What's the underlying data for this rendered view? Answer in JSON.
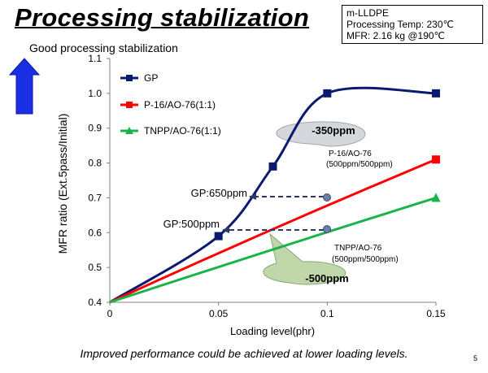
{
  "slide": {
    "title": "Processing stabilization",
    "conditions": [
      "m-LLDPE",
      "Processing Temp: 230℃",
      "MFR: 2.16 kg @190℃"
    ],
    "footer": "Improved performance could be achieved at lower loading levels.",
    "page_number": "5"
  },
  "chart_data": {
    "type": "line",
    "title": "",
    "xlabel": "Loading level(phr)",
    "ylabel": "MFR ratio (Ext.5pass/Initial)",
    "x_ticks": [
      "0",
      "0.05",
      "0.1",
      "0.15"
    ],
    "y_ticks": [
      "0.4",
      "0.5",
      "0.6",
      "0.7",
      "0.8",
      "0.9",
      "1.0",
      "1.1"
    ],
    "xlim": [
      0,
      0.15
    ],
    "ylim": [
      0.4,
      1.1
    ],
    "legend_position": "top-left",
    "series": [
      {
        "name": "GP",
        "color": "#0b1a6e",
        "marker": "square",
        "x": [
          0,
          0.05,
          0.075,
          0.1,
          0.15
        ],
        "y": [
          0.4,
          0.59,
          0.79,
          1.0,
          1.0
        ]
      },
      {
        "name": "P-16/AO-76(1:1)",
        "color": "#ff0000",
        "marker": "square",
        "x": [
          0,
          0.15
        ],
        "y": [
          0.4,
          0.81
        ]
      },
      {
        "name": "TNPP/AO-76(1:1)",
        "color": "#19b24b",
        "marker": "triangle",
        "x": [
          0,
          0.15
        ],
        "y": [
          0.4,
          0.7
        ]
      }
    ],
    "indicator": {
      "label": "Good processing stabilization",
      "color": "#1a2ee6",
      "direction": "up"
    },
    "annotations": [
      {
        "id": "gp650",
        "label": "GP:650ppm",
        "x": 0.065,
        "y": 0.7,
        "arrow_from_x": 0.1
      },
      {
        "id": "gp500",
        "label": "GP:500ppm",
        "x": 0.052,
        "y": 0.61,
        "arrow_from_x": 0.1
      },
      {
        "id": "p16-point",
        "lines": [
          "P-16/AO-76",
          "(500ppm/500ppm)"
        ],
        "x": 0.1,
        "y": 0.7
      },
      {
        "id": "tnpp-point",
        "lines": [
          "TNPP/AO-76",
          "(500ppm/500ppm)"
        ],
        "x": 0.1,
        "y": 0.61
      },
      {
        "id": "callout-350",
        "label": "-350ppm",
        "fill": "#d4d8dc"
      },
      {
        "id": "callout-500",
        "label": "-500ppm",
        "fill": "#bfd7a9"
      }
    ]
  }
}
